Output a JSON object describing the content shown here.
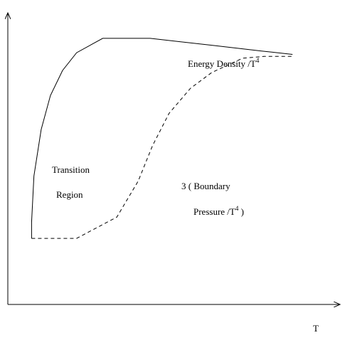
{
  "chart_data": {
    "type": "line",
    "xlabel": "T",
    "ylabel": "",
    "axis_ticks": "none",
    "grid": false,
    "xlim": [
      0,
      100
    ],
    "ylim": [
      0,
      100
    ],
    "series": [
      {
        "name": "Energy Density /T",
        "name_superscript": "4",
        "style": "solid",
        "color": "#000000",
        "points": [
          [
            6.9,
            23.0
          ],
          [
            6.9,
            28.6
          ],
          [
            7.6,
            44.7
          ],
          [
            9.7,
            60.9
          ],
          [
            12.4,
            72.7
          ],
          [
            15.9,
            81.4
          ],
          [
            20.0,
            87.6
          ],
          [
            27.6,
            92.6
          ],
          [
            41.4,
            92.6
          ],
          [
            60.0,
            90.1
          ],
          [
            73.8,
            88.2
          ],
          [
            82.8,
            87.0
          ]
        ]
      },
      {
        "name": "3 ( Boundary Pressure /T",
        "name_superscript": "4",
        "name_suffix": " )",
        "style": "dashed",
        "color": "#000000",
        "points": [
          [
            6.9,
            23.0
          ],
          [
            20.0,
            23.0
          ],
          [
            31.7,
            30.4
          ],
          [
            37.9,
            42.9
          ],
          [
            42.1,
            55.3
          ],
          [
            46.9,
            66.5
          ],
          [
            53.1,
            75.2
          ],
          [
            59.3,
            80.7
          ],
          [
            68.3,
            85.7
          ],
          [
            74.5,
            86.3
          ],
          [
            82.8,
            86.3
          ]
        ]
      }
    ],
    "annotations": [
      {
        "text": "Transition",
        "x": 14.5,
        "y": 59.0
      },
      {
        "text": "Region",
        "x": 15.9,
        "y": 51.6
      }
    ],
    "labels": {
      "x_axis": "T",
      "energy_main": "Energy Density /T",
      "energy_sup": "4",
      "pressure_line1": "3 ( Boundary",
      "pressure_main": "Pressure /T",
      "pressure_sup": "4",
      "pressure_close": " )",
      "region_line1": "Transition",
      "region_line2": "Region"
    }
  }
}
